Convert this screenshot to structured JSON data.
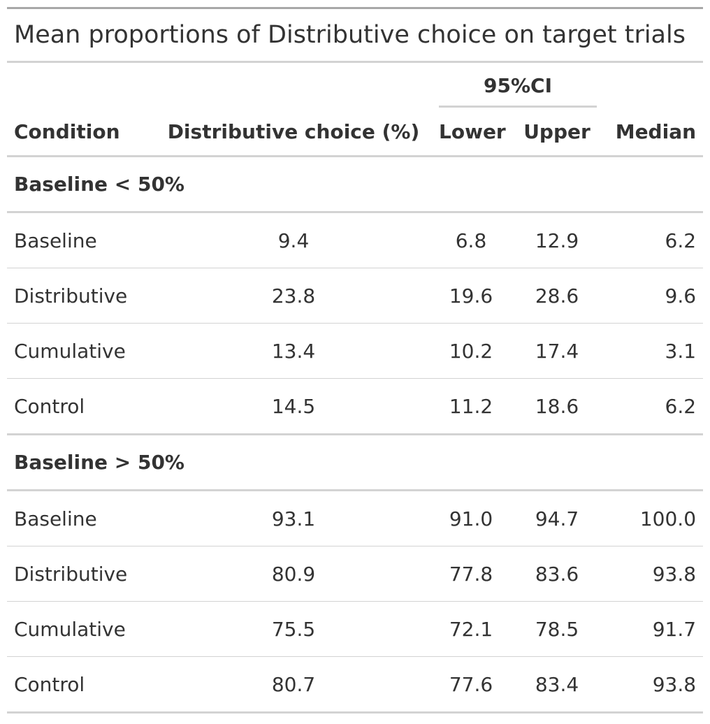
{
  "table": {
    "title": "Mean proportions of Distributive choice on target trials",
    "spanner": "95%CI",
    "columns": {
      "condition": "Condition",
      "distributive_choice": "Distributive choice (%)",
      "lower": "Lower",
      "upper": "Upper",
      "median": "Median"
    },
    "groups": [
      {
        "label": "Baseline < 50%",
        "rows": [
          {
            "condition": "Baseline",
            "choice": "9.4",
            "lower": "6.8",
            "upper": "12.9",
            "median": "6.2"
          },
          {
            "condition": "Distributive",
            "choice": "23.8",
            "lower": "19.6",
            "upper": "28.6",
            "median": "9.6"
          },
          {
            "condition": "Cumulative",
            "choice": "13.4",
            "lower": "10.2",
            "upper": "17.4",
            "median": "3.1"
          },
          {
            "condition": "Control",
            "choice": "14.5",
            "lower": "11.2",
            "upper": "18.6",
            "median": "6.2"
          }
        ]
      },
      {
        "label": "Baseline > 50%",
        "rows": [
          {
            "condition": "Baseline",
            "choice": "93.1",
            "lower": "91.0",
            "upper": "94.7",
            "median": "100.0"
          },
          {
            "condition": "Distributive",
            "choice": "80.9",
            "lower": "77.8",
            "upper": "83.6",
            "median": "93.8"
          },
          {
            "condition": "Cumulative",
            "choice": "75.5",
            "lower": "72.1",
            "upper": "78.5",
            "median": "91.7"
          },
          {
            "condition": "Control",
            "choice": "80.7",
            "lower": "77.6",
            "upper": "83.4",
            "median": "93.8"
          }
        ]
      }
    ]
  }
}
